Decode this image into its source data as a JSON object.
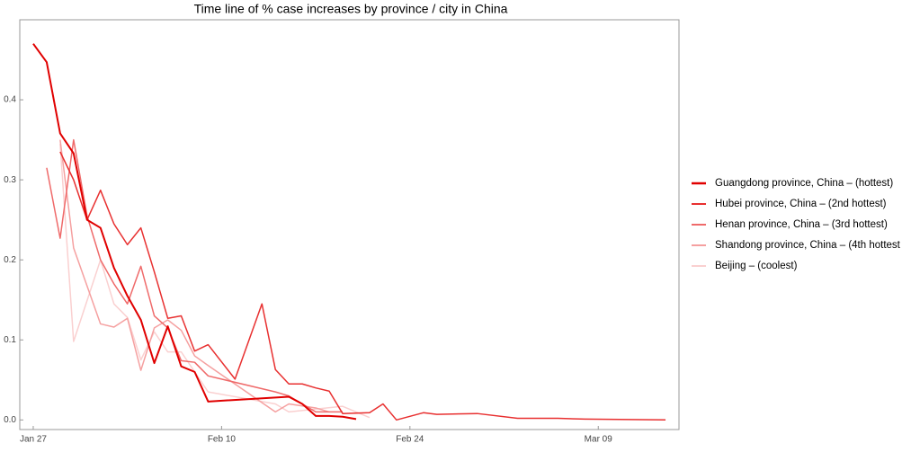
{
  "chart_data": {
    "type": "line",
    "title": "Time line of % case increases by province / city in China",
    "xlim": [
      "Jan 26",
      "Mar 15"
    ],
    "xticks": [
      "Jan 27",
      "Feb 10",
      "Feb 24",
      "Mar 09"
    ],
    "ylim": [
      -0.012,
      0.5
    ],
    "yticks": [
      {
        "value": 0,
        "label": "0.0"
      },
      0.1,
      0.2,
      0.3,
      0.4
    ],
    "grid": false,
    "legend": "right",
    "series": [
      {
        "name": "Guangdong province, China – (hottest)",
        "color": "#e00000",
        "width": 2,
        "x": [
          "Jan 27",
          "Jan 28",
          "Jan 29",
          "Jan 30",
          "Jan 31",
          "Feb 01",
          "Feb 02",
          "Feb 03",
          "Feb 04",
          "Feb 05",
          "Feb 06",
          "Feb 07",
          "Feb 08",
          "Feb 09",
          "Feb 15",
          "Feb 16",
          "Feb 17",
          "Feb 18",
          "Feb 19",
          "Feb 20"
        ],
        "values": [
          0.47,
          0.447,
          0.358,
          0.333,
          0.25,
          0.24,
          0.19,
          0.155,
          0.125,
          0.071,
          0.117,
          0.067,
          0.06,
          0.023,
          0.029,
          0.02,
          0.005,
          0.005,
          0.004,
          0.001
        ]
      },
      {
        "name": "Hubei province, China – (2nd hottest)",
        "color": "#e83030",
        "width": 1.5,
        "x": [
          "Jan 29",
          "Jan 30",
          "Jan 31",
          "Feb 01",
          "Feb 02",
          "Feb 03",
          "Feb 04",
          "Feb 05",
          "Feb 06",
          "Feb 07",
          "Feb 08",
          "Feb 09",
          "Feb 11",
          "Feb 13",
          "Feb 14",
          "Feb 15",
          "Feb 16",
          "Feb 17",
          "Feb 18",
          "Feb 19",
          "Feb 21",
          "Feb 22",
          "Feb 23",
          "Feb 25",
          "Feb 26",
          "Feb 29",
          "Mar 03",
          "Mar 06",
          "Mar 08",
          "Mar 14"
        ],
        "values": [
          0.335,
          0.3,
          0.25,
          0.287,
          0.245,
          0.219,
          0.24,
          0.185,
          0.127,
          0.13,
          0.086,
          0.094,
          0.051,
          0.145,
          0.063,
          0.045,
          0.045,
          0.04,
          0.036,
          0.008,
          0.009,
          0.02,
          0.0,
          0.009,
          0.007,
          0.008,
          0.002,
          0.002,
          0.001,
          0.0
        ]
      },
      {
        "name": "Henan province, China – (3rd hottest)",
        "color": "#ef6a6a",
        "width": 1.5,
        "x": [
          "Jan 28",
          "Jan 29",
          "Jan 30",
          "Jan 31",
          "Feb 01",
          "Feb 02",
          "Feb 03",
          "Feb 04",
          "Feb 05",
          "Feb 06",
          "Feb 07",
          "Feb 08",
          "Feb 09",
          "Feb 14",
          "Feb 15",
          "Feb 17",
          "Feb 19"
        ],
        "values": [
          0.315,
          0.227,
          0.35,
          0.255,
          0.2,
          0.17,
          0.145,
          0.192,
          0.13,
          0.115,
          0.074,
          0.072,
          0.055,
          0.035,
          0.03,
          0.01,
          0.01
        ]
      },
      {
        "name": "Shandong province, China – (4th hottest",
        "color": "#f5a0a0",
        "width": 1.5,
        "x": [
          "Jan 29",
          "Jan 30",
          "Feb 01",
          "Feb 02",
          "Feb 03",
          "Feb 04",
          "Feb 05",
          "Feb 06",
          "Feb 07",
          "Feb 08",
          "Feb 09",
          "Feb 14",
          "Feb 15",
          "Feb 17",
          "Feb 18"
        ],
        "values": [
          0.35,
          0.215,
          0.12,
          0.116,
          0.127,
          0.062,
          0.115,
          0.125,
          0.112,
          0.08,
          0.068,
          0.01,
          0.02,
          0.015,
          0.01
        ]
      },
      {
        "name": "Beijing – (coolest)",
        "color": "#fad0d0",
        "width": 1.5,
        "x": [
          "Jan 29",
          "Jan 30",
          "Feb 01",
          "Feb 02",
          "Feb 03",
          "Feb 04",
          "Feb 05",
          "Feb 06",
          "Feb 07",
          "Feb 09",
          "Feb 14",
          "Feb 15",
          "Feb 19",
          "Feb 21"
        ],
        "values": [
          0.345,
          0.098,
          0.2,
          0.145,
          0.128,
          0.075,
          0.11,
          0.085,
          0.085,
          0.035,
          0.02,
          0.01,
          0.017,
          0.003
        ]
      }
    ]
  }
}
